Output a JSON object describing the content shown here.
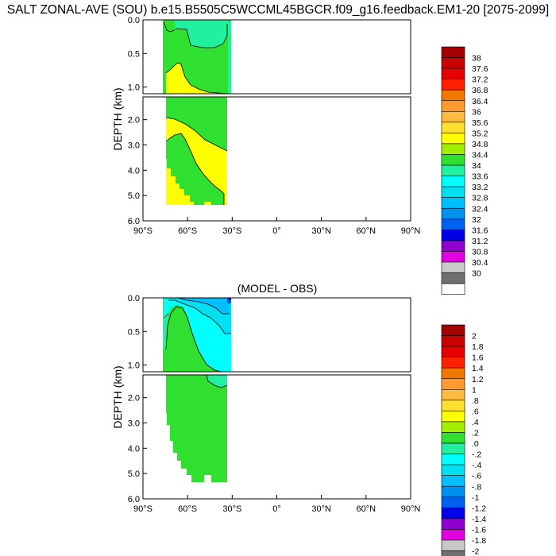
{
  "figure": {
    "title": "SALT ZONAL-AVE (SOU) b.e15.B5505C5WCCML45BGCR.f09_g16.feedback.EM1-20 [2075-2099]"
  },
  "chart_data": [
    {
      "type": "heatmap",
      "title": "",
      "xlabel": "",
      "ylabel": "DEPTH (km)",
      "x_ticks": [
        "90°S",
        "60°S",
        "30°S",
        "0°",
        "30°N",
        "60°N",
        "90°N"
      ],
      "y_ticks_top": [
        "0.0",
        "0.5",
        "1.0"
      ],
      "y_ticks_bottom": [
        "2.0",
        "3.0",
        "4.0",
        "5.0",
        "6.0"
      ],
      "xlim": [
        -90,
        90
      ],
      "ylim_km": [
        6.0,
        0.0
      ],
      "colorbar": {
        "levels": [
          "38",
          "37.6",
          "37.2",
          "36.8",
          "36.4",
          "36",
          "35.6",
          "35.2",
          "34.8",
          "34.4",
          "34",
          "33.6",
          "33.2",
          "32.8",
          "32.4",
          "32",
          "31.6",
          "31.2",
          "30.8",
          "30.4",
          "30"
        ],
        "colors": [
          "#a50000",
          "#c80000",
          "#e60000",
          "#ff2000",
          "#f07800",
          "#ff9a30",
          "#ffba40",
          "#ffe030",
          "#ffff00",
          "#a0f000",
          "#30e030",
          "#20f0a0",
          "#00ffff",
          "#00e0f0",
          "#00bfff",
          "#0090f0",
          "#0060f0",
          "#0000e8",
          "#9000d0",
          "#e000e0",
          "#c8c8c8",
          "#707070",
          "#ffffff"
        ]
      }
    },
    {
      "type": "heatmap",
      "title": "(MODEL - OBS)",
      "xlabel": "",
      "ylabel": "DEPTH (km)",
      "x_ticks": [
        "90°S",
        "60°S",
        "30°S",
        "0°",
        "30°N",
        "60°N",
        "90°N"
      ],
      "y_ticks_top": [
        "0.0",
        "0.5",
        "1.0"
      ],
      "y_ticks_bottom": [
        "2.0",
        "3.0",
        "4.0",
        "5.0",
        "6.0"
      ],
      "xlim": [
        -90,
        90
      ],
      "ylim_km": [
        6.0,
        0.0
      ],
      "colorbar": {
        "levels": [
          "2",
          "1.8",
          "1.6",
          "1.4",
          "1.2",
          "1",
          ".8",
          ".6",
          ".4",
          ".2",
          ".0",
          "-.2",
          "-.4",
          "-.6",
          "-.8",
          "-1",
          "-1.2",
          "-1.4",
          "-1.6",
          "-1.8",
          "-2"
        ],
        "colors": [
          "#a50000",
          "#c80000",
          "#e60000",
          "#ff2000",
          "#f07800",
          "#ff9a30",
          "#ffba40",
          "#ffe030",
          "#ffff00",
          "#a0f000",
          "#30e030",
          "#20f0a0",
          "#00ffff",
          "#00e0f0",
          "#00bfff",
          "#0090f0",
          "#0060f0",
          "#0000e8",
          "#9000d0",
          "#e000e0",
          "#c8c8c8",
          "#707070",
          "#ffffff"
        ]
      }
    }
  ]
}
